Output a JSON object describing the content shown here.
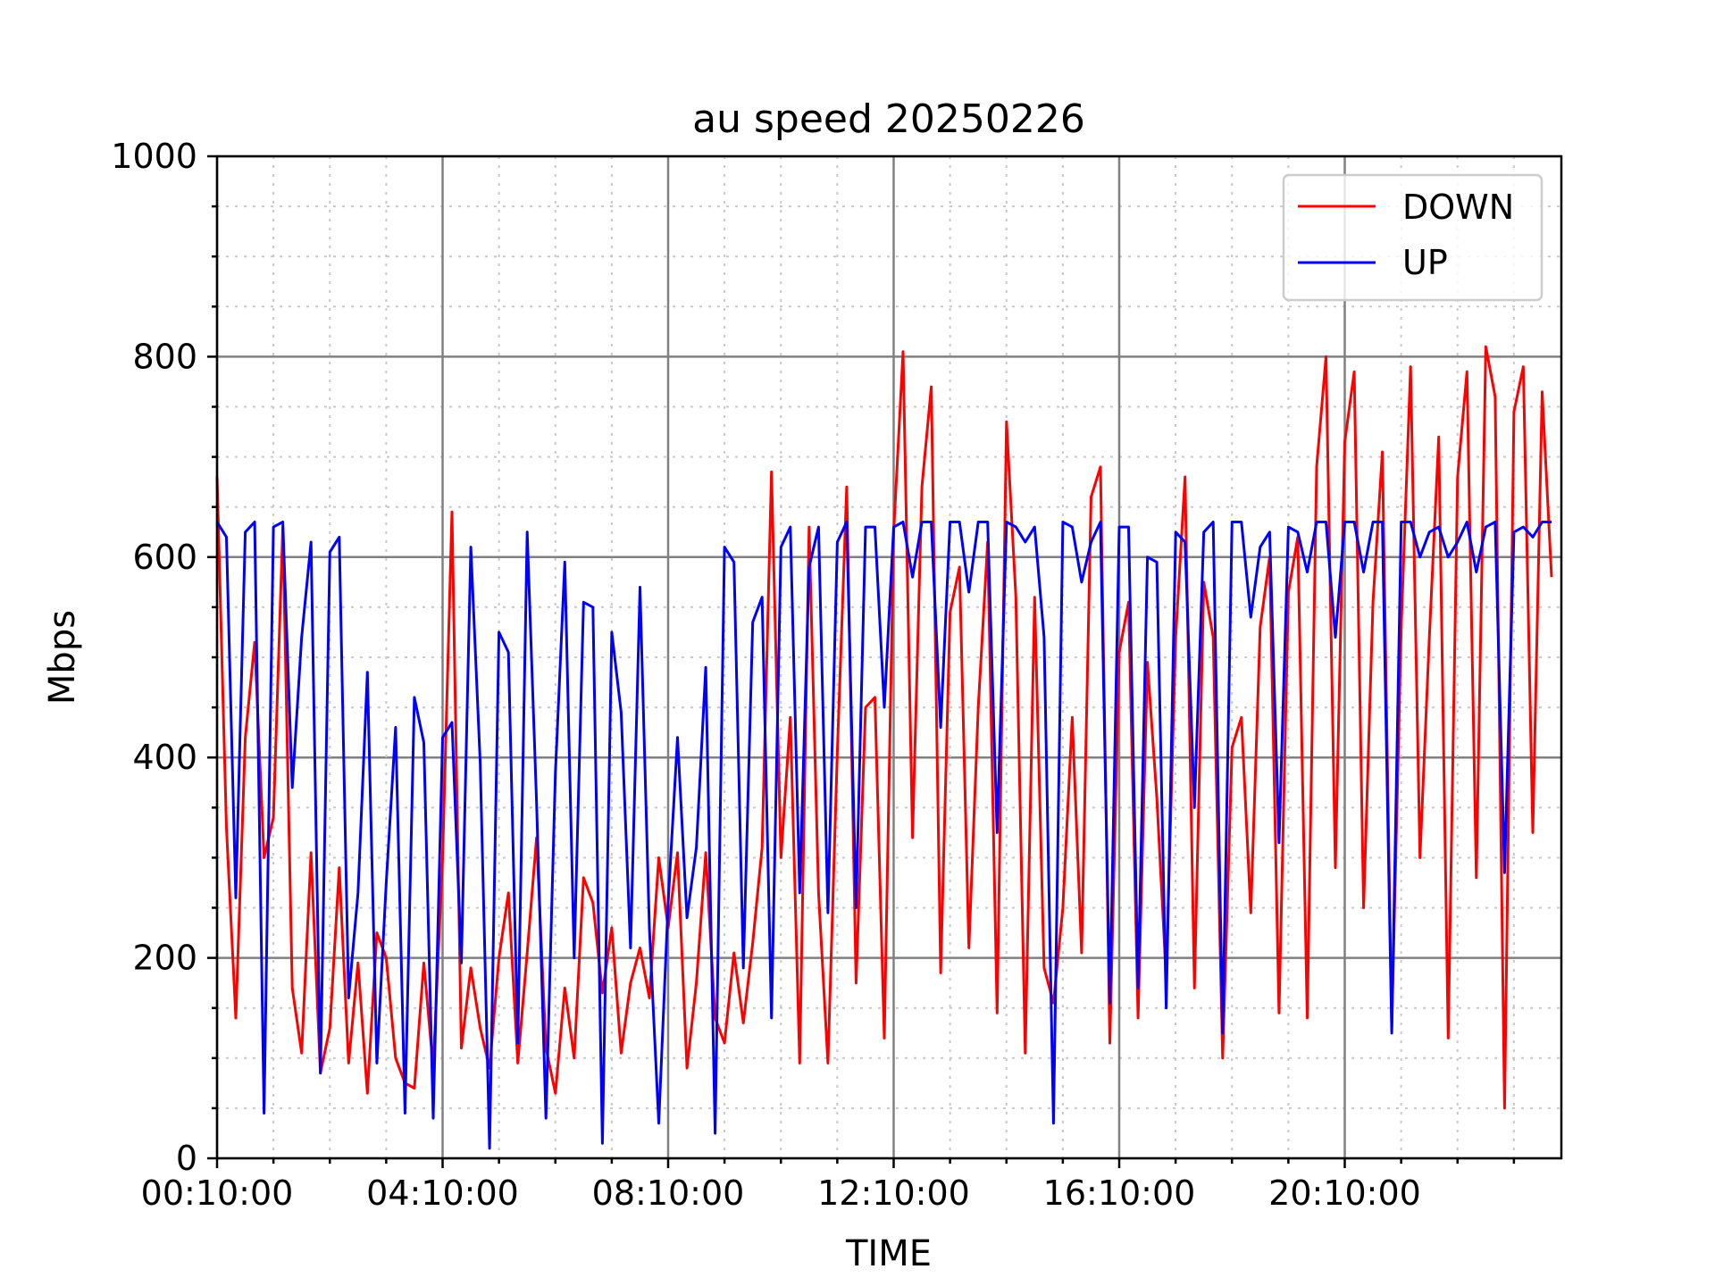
{
  "chart_data": {
    "type": "line",
    "title": "au speed 20250226",
    "xlabel": "TIME",
    "ylabel": "Mbps",
    "ylim": [
      0,
      1000
    ],
    "y_major_ticks": [
      0,
      200,
      400,
      600,
      800,
      1000
    ],
    "y_minor_step": 50,
    "x_tick_labels": [
      "00:10:00",
      "04:10:00",
      "08:10:00",
      "12:10:00",
      "16:10:00",
      "20:10:00"
    ],
    "x_minor_per_major": 4,
    "grid": true,
    "legend_position": "top-right",
    "series": [
      {
        "name": "DOWN",
        "color": "#ff0000",
        "values": [
          680,
          330,
          140,
          420,
          515,
          300,
          340,
          630,
          170,
          105,
          305,
          85,
          130,
          290,
          95,
          195,
          65,
          225,
          200,
          100,
          75,
          70,
          195,
          90,
          300,
          645,
          110,
          190,
          130,
          90,
          200,
          265,
          95,
          205,
          320,
          110,
          65,
          170,
          100,
          280,
          255,
          165,
          230,
          105,
          175,
          210,
          160,
          300,
          230,
          305,
          90,
          175,
          305,
          140,
          115,
          205,
          135,
          215,
          310,
          685,
          300,
          440,
          95,
          630,
          265,
          95,
          405,
          670,
          175,
          450,
          460,
          120,
          625,
          805,
          320,
          670,
          770,
          185,
          545,
          590,
          210,
          450,
          615,
          145,
          735,
          560,
          105,
          560,
          190,
          155,
          250,
          440,
          205,
          660,
          690,
          115,
          505,
          555,
          140,
          495,
          360,
          180,
          520,
          680,
          170,
          575,
          520,
          100,
          410,
          440,
          245,
          530,
          600,
          145,
          565,
          620,
          140,
          690,
          800,
          290,
          715,
          785,
          250,
          555,
          705,
          130,
          530,
          790,
          300,
          520,
          720,
          120,
          680,
          785,
          280,
          810,
          760,
          50,
          745,
          790,
          325,
          765,
          580
        ]
      },
      {
        "name": "UP",
        "color": "#0000ff",
        "values": [
          635,
          620,
          260,
          625,
          635,
          45,
          630,
          635,
          370,
          520,
          615,
          85,
          605,
          620,
          160,
          265,
          485,
          95,
          275,
          430,
          45,
          460,
          415,
          40,
          420,
          435,
          195,
          610,
          395,
          10,
          525,
          505,
          115,
          625,
          355,
          40,
          385,
          595,
          200,
          555,
          550,
          15,
          525,
          445,
          210,
          570,
          230,
          35,
          255,
          420,
          240,
          310,
          490,
          25,
          610,
          595,
          190,
          535,
          560,
          140,
          610,
          630,
          265,
          590,
          630,
          245,
          615,
          635,
          250,
          630,
          630,
          450,
          630,
          635,
          580,
          635,
          635,
          430,
          635,
          635,
          565,
          635,
          635,
          325,
          635,
          630,
          615,
          630,
          520,
          35,
          635,
          630,
          575,
          615,
          635,
          155,
          630,
          630,
          170,
          600,
          595,
          150,
          625,
          615,
          350,
          625,
          635,
          125,
          635,
          635,
          540,
          610,
          625,
          315,
          630,
          625,
          585,
          635,
          635,
          520,
          635,
          635,
          585,
          635,
          635,
          125,
          635,
          635,
          600,
          625,
          630,
          600,
          615,
          635,
          585,
          630,
          635,
          285,
          625,
          630,
          620,
          635,
          635
        ]
      }
    ]
  }
}
